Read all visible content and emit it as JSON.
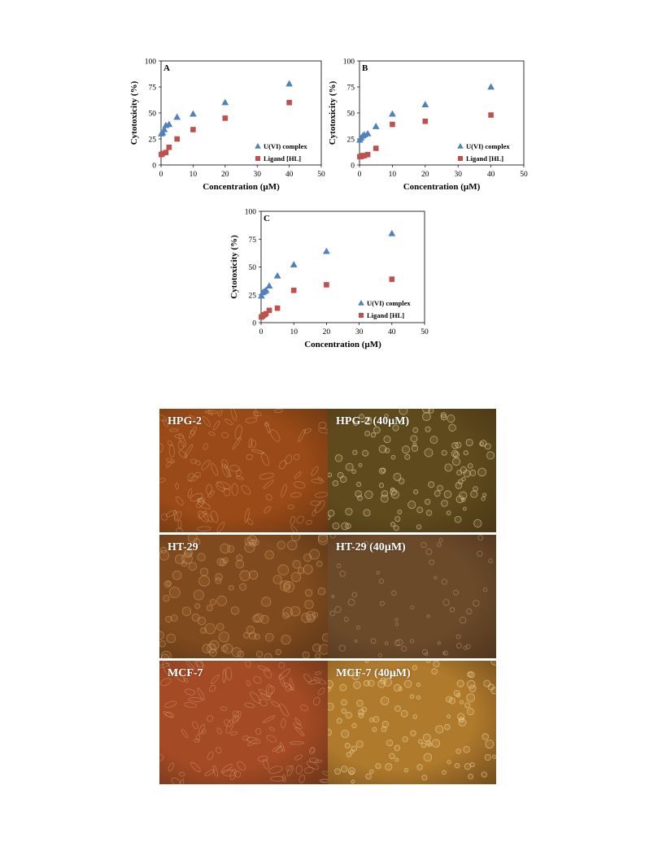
{
  "chart_data": [
    {
      "type": "scatter",
      "panel_label": "A",
      "xlabel": "Concentration (µM)",
      "ylabel": "Cytotoxicity (%)",
      "xlim": [
        0,
        50
      ],
      "ylim": [
        0,
        100
      ],
      "xticks": [
        0,
        10,
        20,
        30,
        40,
        50
      ],
      "yticks": [
        0,
        25,
        50,
        75,
        100
      ],
      "legend_position": "bottom-right",
      "series": [
        {
          "name": "U(VI) complex",
          "marker": "triangle",
          "color": "#4f81bd",
          "x": [
            0.1,
            0.5,
            1,
            1.5,
            2.5,
            5,
            10,
            20,
            40
          ],
          "y": [
            30,
            31,
            34,
            38,
            39,
            46,
            49,
            60,
            78
          ]
        },
        {
          "name": "Ligand [HL]",
          "marker": "square",
          "color": "#c0504d",
          "x": [
            0.1,
            0.5,
            1.5,
            2.5,
            5,
            10,
            20,
            40
          ],
          "y": [
            10,
            11,
            12,
            17,
            25,
            34,
            45,
            60
          ]
        }
      ]
    },
    {
      "type": "scatter",
      "panel_label": "B",
      "xlabel": "Concentration (µM)",
      "ylabel": "Cytotoxicity (%)",
      "xlim": [
        0,
        50
      ],
      "ylim": [
        0,
        100
      ],
      "xticks": [
        0,
        10,
        20,
        30,
        40,
        50
      ],
      "yticks": [
        0,
        25,
        50,
        75,
        100
      ],
      "legend_position": "bottom-right",
      "series": [
        {
          "name": "U(VI) complex",
          "marker": "triangle",
          "color": "#4f81bd",
          "x": [
            0.1,
            0.5,
            1,
            1.5,
            2.5,
            5,
            10,
            20,
            40
          ],
          "y": [
            24,
            26,
            28,
            29,
            30,
            37,
            49,
            58,
            75
          ]
        },
        {
          "name": "Ligand [HL]",
          "marker": "square",
          "color": "#c0504d",
          "x": [
            0.1,
            0.5,
            1,
            1.5,
            2.5,
            5,
            10,
            20,
            40
          ],
          "y": [
            8,
            8,
            9,
            9,
            10,
            16,
            39,
            42,
            48
          ]
        }
      ]
    },
    {
      "type": "scatter",
      "panel_label": "C",
      "xlabel": "Concentration (µM)",
      "ylabel": "Cytotoxicity (%)",
      "xlim": [
        0,
        50
      ],
      "ylim": [
        0,
        100
      ],
      "xticks": [
        0,
        10,
        20,
        30,
        40,
        50
      ],
      "yticks": [
        0,
        25,
        50,
        75,
        100
      ],
      "legend_position": "bottom-right",
      "series": [
        {
          "name": "U(VI) complex",
          "marker": "triangle",
          "color": "#4f81bd",
          "x": [
            0.1,
            0.5,
            1,
            1.5,
            2.5,
            5,
            10,
            20,
            40
          ],
          "y": [
            24,
            27,
            28,
            29,
            33,
            42,
            52,
            64,
            80
          ]
        },
        {
          "name": "Ligand [HL]",
          "marker": "square",
          "color": "#c0504d",
          "x": [
            0.1,
            0.5,
            1,
            1.5,
            2.5,
            5,
            10,
            20,
            40
          ],
          "y": [
            5,
            6,
            7,
            8,
            11,
            13,
            29,
            34,
            39
          ]
        }
      ]
    }
  ],
  "micrographs": [
    {
      "label": "HPG-2",
      "tint": "#9a4a16",
      "texture": "dense-spindle"
    },
    {
      "label": "HPG-2 (40µM)",
      "tint": "#5e4a1c",
      "texture": "round-bright"
    },
    {
      "label": "HT-29",
      "tint": "#7f4a1e",
      "texture": "round-clusters"
    },
    {
      "label": "HT-29 (40µM)",
      "tint": "#6b4a2a",
      "texture": "sparse-debris"
    },
    {
      "label": "MCF-7",
      "tint": "#a44a24",
      "texture": "dense-spindle"
    },
    {
      "label": "MCF-7 (40µM)",
      "tint": "#b07a2c",
      "texture": "round-bright"
    }
  ]
}
